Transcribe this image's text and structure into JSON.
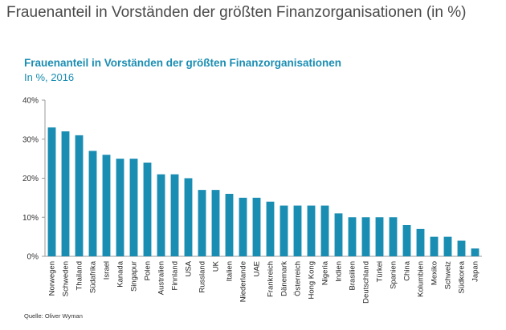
{
  "page": {
    "title": "Frauenanteil in Vorständen der größten Finanzorganisationen (in %)"
  },
  "chart_data": {
    "type": "bar",
    "title": "Frauenanteil in Vorständen der größten Finanzorganisationen",
    "subtitle": "In %, 2016",
    "xlabel": "",
    "ylabel": "",
    "ylim": [
      0,
      40
    ],
    "y_ticks": [
      0,
      10,
      20,
      30,
      40
    ],
    "y_tick_labels": [
      "0%",
      "10%",
      "20%",
      "30%",
      "40%"
    ],
    "grid": false,
    "legend": "none",
    "bar_color": "#1a8db2",
    "categories": [
      "Norwegen",
      "Schweden",
      "Thailand",
      "Südafrika",
      "Israel",
      "Kanada",
      "Singapur",
      "Polen",
      "Australien",
      "Finnland",
      "USA",
      "Russland",
      "UK",
      "Italien",
      "Niederlande",
      "UAE",
      "Frankreich",
      "Dänemark",
      "Österreich",
      "Hong Kong",
      "Nigeria",
      "Indien",
      "Brasilien",
      "Deutschland",
      "Türkei",
      "Spanien",
      "China",
      "Kolumbien",
      "Mexiko",
      "Schweiz",
      "Südkorea",
      "Japan"
    ],
    "values": [
      33,
      32,
      31,
      27,
      26,
      25,
      25,
      24,
      21,
      21,
      20,
      17,
      17,
      16,
      15,
      15,
      14,
      13,
      13,
      13,
      13,
      11,
      10,
      10,
      10,
      10,
      8,
      7,
      5,
      5,
      4,
      2
    ]
  },
  "source": "Quelle: Oliver Wyman"
}
